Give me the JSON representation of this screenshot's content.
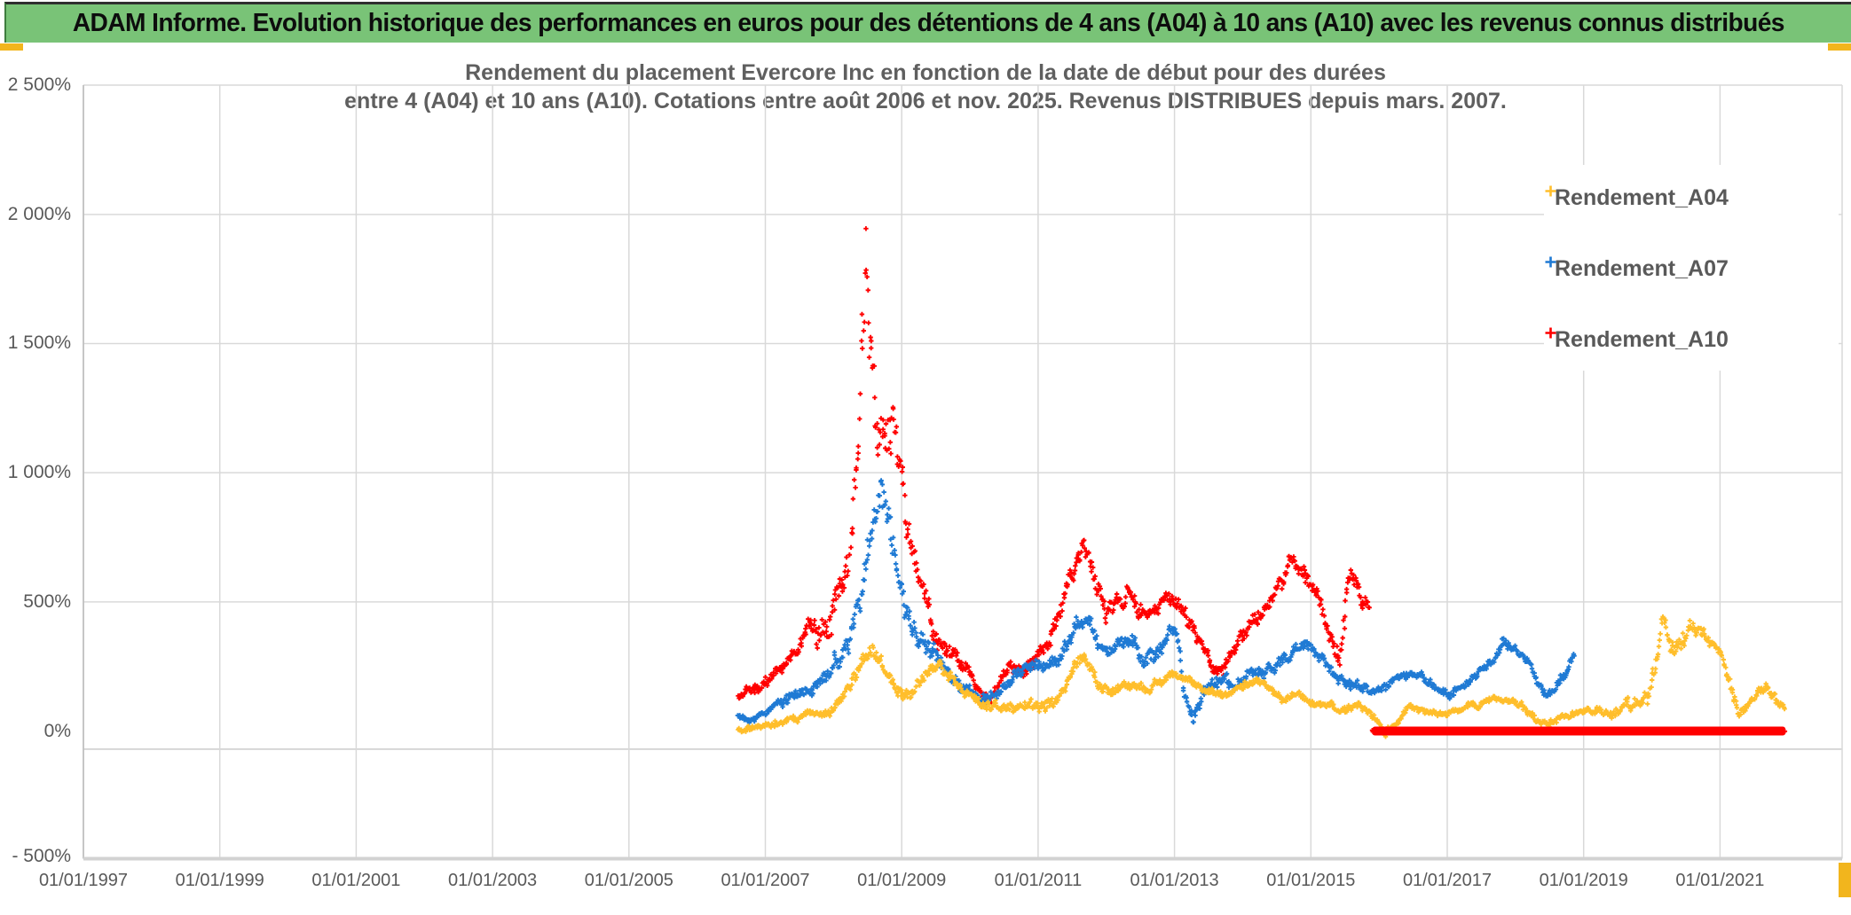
{
  "banner": {
    "title": "ADAM Informe. Evolution historique des performances en euros pour des détentions de 4 ans (A04) à 10 ans (A10) avec les revenus connus distribués",
    "background": "#79C377",
    "accent_color": "#F2B51D"
  },
  "chart": {
    "title_line1": "Rendement du placement Evercore Inc en fonction de la date de début pour des durées",
    "title_line2": "entre 4 (A04) et 10 ans (A10). Cotations entre août 2006 et nov. 2025. Revenus DISTRIBUES depuis mars. 2007.",
    "text_color": "#595959",
    "grid_color": "#D9D9D9"
  },
  "chart_data": {
    "type": "scatter",
    "marker": "plus",
    "legend_position": "right-inside",
    "x_axis": {
      "tick_years": [
        1997,
        1999,
        2001,
        2003,
        2005,
        2007,
        2009,
        2011,
        2013,
        2015,
        2017,
        2019,
        2021
      ],
      "tick_labels": [
        "01/01/1997",
        "01/01/1999",
        "01/01/2001",
        "01/01/2003",
        "01/01/2005",
        "01/01/2007",
        "01/01/2009",
        "01/01/2011",
        "01/01/2013",
        "01/01/2015",
        "01/01/2017",
        "01/01/2019",
        "01/01/2021"
      ],
      "data_start_year": 2006.6,
      "data_end_year": 2021.95
    },
    "y_axis": {
      "unit": "%",
      "min": -500,
      "max": 2500,
      "ticks": [
        {
          "label": "2 500%",
          "value": 2500
        },
        {
          "label": "2 000%",
          "value": 2000
        },
        {
          "label": "1 500%",
          "value": 1500
        },
        {
          "label": "1 000%",
          "value": 1000
        },
        {
          "label": "500%",
          "value": 500
        },
        {
          "label": "0%",
          "value": 0
        },
        {
          "label": "- 500%",
          "value": -500
        }
      ],
      "gridline_values": [
        2000,
        1500,
        1000,
        500
      ],
      "extra_line_value": -70
    },
    "series": [
      {
        "name": "Rendement_A04",
        "color": "#FFBE2B",
        "seed": 11,
        "anchors": [
          [
            2006.6,
            5
          ],
          [
            2007.0,
            15
          ],
          [
            2007.3,
            40
          ],
          [
            2007.6,
            60
          ],
          [
            2007.9,
            70
          ],
          [
            2008.1,
            120
          ],
          [
            2008.3,
            220
          ],
          [
            2008.5,
            310
          ],
          [
            2008.65,
            300
          ],
          [
            2008.8,
            210
          ],
          [
            2009.0,
            150
          ],
          [
            2009.15,
            135
          ],
          [
            2009.35,
            215
          ],
          [
            2009.5,
            255
          ],
          [
            2009.7,
            215
          ],
          [
            2009.9,
            150
          ],
          [
            2010.2,
            100
          ],
          [
            2010.5,
            88
          ],
          [
            2010.8,
            105
          ],
          [
            2011.0,
            95
          ],
          [
            2011.3,
            125
          ],
          [
            2011.55,
            265
          ],
          [
            2011.7,
            280
          ],
          [
            2011.9,
            165
          ],
          [
            2012.1,
            150
          ],
          [
            2012.4,
            180
          ],
          [
            2012.6,
            158
          ],
          [
            2012.9,
            205
          ],
          [
            2013.05,
            218
          ],
          [
            2013.25,
            195
          ],
          [
            2013.45,
            152
          ],
          [
            2013.65,
            140
          ],
          [
            2013.85,
            152
          ],
          [
            2014.05,
            185
          ],
          [
            2014.2,
            192
          ],
          [
            2014.4,
            170
          ],
          [
            2014.6,
            118
          ],
          [
            2014.8,
            148
          ],
          [
            2015.0,
            115
          ],
          [
            2015.25,
            92
          ],
          [
            2015.5,
            80
          ],
          [
            2015.7,
            103
          ],
          [
            2015.95,
            45
          ],
          [
            2016.1,
            -8
          ],
          [
            2016.3,
            45
          ],
          [
            2016.45,
            102
          ],
          [
            2016.7,
            80
          ],
          [
            2017.0,
            70
          ],
          [
            2017.25,
            95
          ],
          [
            2017.45,
            105
          ],
          [
            2017.7,
            125
          ],
          [
            2017.9,
            113
          ],
          [
            2018.1,
            100
          ],
          [
            2018.35,
            35
          ],
          [
            2018.55,
            32
          ],
          [
            2018.75,
            60
          ],
          [
            2018.95,
            75
          ],
          [
            2019.15,
            78
          ],
          [
            2019.35,
            60
          ],
          [
            2019.55,
            80
          ],
          [
            2019.75,
            103
          ],
          [
            2019.95,
            145
          ],
          [
            2020.1,
            300
          ],
          [
            2020.17,
            460
          ],
          [
            2020.25,
            330
          ],
          [
            2020.4,
            300
          ],
          [
            2020.55,
            400
          ],
          [
            2020.65,
            405
          ],
          [
            2020.8,
            350
          ],
          [
            2020.95,
            315
          ],
          [
            2021.05,
            255
          ],
          [
            2021.15,
            185
          ],
          [
            2021.28,
            55
          ],
          [
            2021.42,
            105
          ],
          [
            2021.55,
            148
          ],
          [
            2021.67,
            188
          ],
          [
            2021.8,
            128
          ],
          [
            2021.95,
            95
          ]
        ],
        "spread": [
          [
            2006.6,
            10
          ],
          [
            2008.0,
            16
          ],
          [
            2008.5,
            30
          ],
          [
            2009.5,
            20
          ],
          [
            2011.6,
            22
          ],
          [
            2013.0,
            16
          ],
          [
            2016.0,
            12
          ],
          [
            2019.0,
            12
          ],
          [
            2020.2,
            38
          ],
          [
            2020.8,
            25
          ],
          [
            2021.95,
            18
          ]
        ],
        "clamp": [
          -45,
          502
        ]
      },
      {
        "name": "Rendement_A07",
        "color": "#1F7AD4",
        "seed": 22,
        "anchors": [
          [
            2006.6,
            62
          ],
          [
            2006.8,
            52
          ],
          [
            2007.0,
            70
          ],
          [
            2007.2,
            110
          ],
          [
            2007.5,
            140
          ],
          [
            2007.75,
            165
          ],
          [
            2008.0,
            240
          ],
          [
            2008.2,
            340
          ],
          [
            2008.4,
            520
          ],
          [
            2008.55,
            720
          ],
          [
            2008.68,
            900
          ],
          [
            2008.78,
            830
          ],
          [
            2008.9,
            640
          ],
          [
            2009.0,
            500
          ],
          [
            2009.15,
            420
          ],
          [
            2009.35,
            330
          ],
          [
            2009.55,
            250
          ],
          [
            2009.75,
            200
          ],
          [
            2009.95,
            162
          ],
          [
            2010.15,
            112
          ],
          [
            2010.35,
            150
          ],
          [
            2010.6,
            212
          ],
          [
            2010.85,
            238
          ],
          [
            2011.05,
            258
          ],
          [
            2011.25,
            278
          ],
          [
            2011.45,
            340
          ],
          [
            2011.6,
            440
          ],
          [
            2011.75,
            415
          ],
          [
            2011.95,
            310
          ],
          [
            2012.15,
            322
          ],
          [
            2012.35,
            352
          ],
          [
            2012.55,
            268
          ],
          [
            2012.75,
            308
          ],
          [
            2012.95,
            385
          ],
          [
            2013.05,
            360
          ],
          [
            2013.15,
            120
          ],
          [
            2013.27,
            48
          ],
          [
            2013.42,
            150
          ],
          [
            2013.57,
            198
          ],
          [
            2013.72,
            188
          ],
          [
            2013.87,
            175
          ],
          [
            2014.05,
            212
          ],
          [
            2014.25,
            228
          ],
          [
            2014.45,
            248
          ],
          [
            2014.65,
            280
          ],
          [
            2014.8,
            330
          ],
          [
            2014.92,
            342
          ],
          [
            2015.1,
            285
          ],
          [
            2015.3,
            228
          ],
          [
            2015.55,
            188
          ],
          [
            2015.75,
            172
          ],
          [
            2015.95,
            155
          ],
          [
            2016.15,
            178
          ],
          [
            2016.35,
            208
          ],
          [
            2016.55,
            222
          ],
          [
            2016.75,
            178
          ],
          [
            2016.9,
            148
          ],
          [
            2017.05,
            138
          ],
          [
            2017.25,
            182
          ],
          [
            2017.45,
            228
          ],
          [
            2017.65,
            272
          ],
          [
            2017.85,
            345
          ],
          [
            2018.0,
            308
          ],
          [
            2018.18,
            272
          ],
          [
            2018.32,
            195
          ],
          [
            2018.45,
            132
          ],
          [
            2018.6,
            172
          ],
          [
            2018.72,
            218
          ],
          [
            2018.82,
            285
          ],
          [
            2018.87,
            312
          ]
        ],
        "spread": [
          [
            2006.6,
            9
          ],
          [
            2008.0,
            30
          ],
          [
            2008.4,
            60
          ],
          [
            2008.7,
            85
          ],
          [
            2009.2,
            45
          ],
          [
            2010.0,
            18
          ],
          [
            2011.6,
            32
          ],
          [
            2013.2,
            26
          ],
          [
            2015.0,
            20
          ],
          [
            2017.0,
            18
          ],
          [
            2018.87,
            16
          ]
        ],
        "clamp": [
          5,
          1045
        ]
      },
      {
        "name": "Rendement_A10",
        "color": "#FF0000",
        "seed": 33,
        "anchors": [
          [
            2006.6,
            132
          ],
          [
            2006.75,
            162
          ],
          [
            2006.9,
            148
          ],
          [
            2007.05,
            182
          ],
          [
            2007.2,
            242
          ],
          [
            2007.35,
            282
          ],
          [
            2007.5,
            338
          ],
          [
            2007.65,
            415
          ],
          [
            2007.8,
            382
          ],
          [
            2007.95,
            420
          ],
          [
            2008.05,
            505
          ],
          [
            2008.15,
            575
          ],
          [
            2008.25,
            700
          ],
          [
            2008.35,
            1050
          ],
          [
            2008.42,
            1480
          ],
          [
            2008.47,
            1820
          ],
          [
            2008.53,
            1580
          ],
          [
            2008.6,
            1240
          ],
          [
            2008.7,
            1080
          ],
          [
            2008.8,
            1140
          ],
          [
            2008.88,
            1280
          ],
          [
            2008.96,
            990
          ],
          [
            2009.05,
            800
          ],
          [
            2009.15,
            695
          ],
          [
            2009.3,
            555
          ],
          [
            2009.45,
            420
          ],
          [
            2009.6,
            338
          ],
          [
            2009.75,
            288
          ],
          [
            2009.9,
            252
          ],
          [
            2010.05,
            212
          ],
          [
            2010.2,
            112
          ],
          [
            2010.35,
            150
          ],
          [
            2010.5,
            228
          ],
          [
            2010.65,
            252
          ],
          [
            2010.8,
            232
          ],
          [
            2010.95,
            278
          ],
          [
            2011.1,
            330
          ],
          [
            2011.25,
            418
          ],
          [
            2011.4,
            518
          ],
          [
            2011.55,
            638
          ],
          [
            2011.65,
            730
          ],
          [
            2011.75,
            695
          ],
          [
            2011.85,
            578
          ],
          [
            2012.0,
            468
          ],
          [
            2012.15,
            498
          ],
          [
            2012.3,
            528
          ],
          [
            2012.45,
            478
          ],
          [
            2012.6,
            438
          ],
          [
            2012.75,
            468
          ],
          [
            2012.9,
            508
          ],
          [
            2013.0,
            528
          ],
          [
            2013.12,
            478
          ],
          [
            2013.27,
            398
          ],
          [
            2013.42,
            308
          ],
          [
            2013.57,
            248
          ],
          [
            2013.72,
            232
          ],
          [
            2013.87,
            298
          ],
          [
            2014.02,
            388
          ],
          [
            2014.17,
            428
          ],
          [
            2014.32,
            458
          ],
          [
            2014.47,
            538
          ],
          [
            2014.6,
            598
          ],
          [
            2014.72,
            660
          ],
          [
            2014.85,
            638
          ],
          [
            2015.0,
            568
          ],
          [
            2015.15,
            458
          ],
          [
            2015.3,
            328
          ],
          [
            2015.42,
            298
          ],
          [
            2015.55,
            555
          ],
          [
            2015.65,
            585
          ],
          [
            2015.75,
            518
          ],
          [
            2015.87,
            498
          ]
        ],
        "spread": [
          [
            2006.6,
            14
          ],
          [
            2007.5,
            28
          ],
          [
            2008.25,
            90
          ],
          [
            2008.45,
            160
          ],
          [
            2008.9,
            130
          ],
          [
            2009.3,
            55
          ],
          [
            2010.0,
            22
          ],
          [
            2011.6,
            38
          ],
          [
            2013.0,
            28
          ],
          [
            2014.7,
            32
          ],
          [
            2015.5,
            38
          ],
          [
            2015.87,
            26
          ]
        ],
        "clamp": [
          50,
          1945
        ],
        "flat_segment": {
          "from": 2015.9,
          "to": 2021.96,
          "value": 0,
          "spread": 4,
          "seed": 44
        }
      }
    ]
  }
}
